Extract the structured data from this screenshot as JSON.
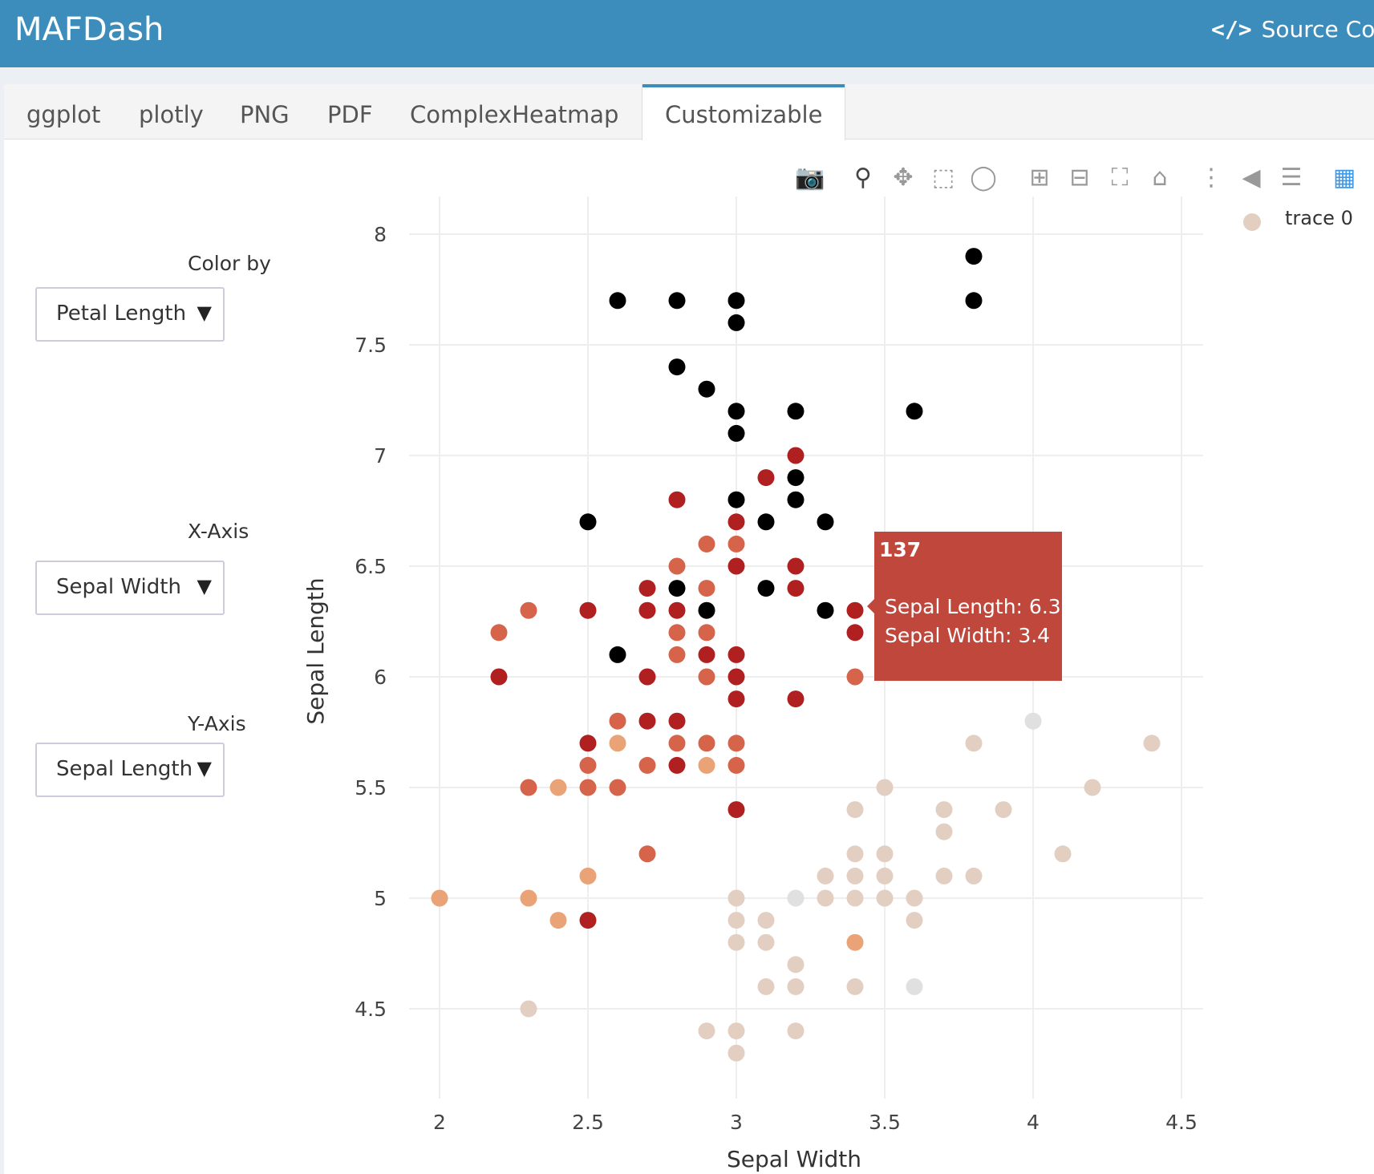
{
  "app": {
    "title": "MAFDash",
    "source_link": "Source Code"
  },
  "tabs": [
    {
      "label": "ggplot"
    },
    {
      "label": "plotly"
    },
    {
      "label": "PNG"
    },
    {
      "label": "PDF"
    },
    {
      "label": "ComplexHeatmap"
    },
    {
      "label": "Customizable"
    }
  ],
  "active_tab": "Customizable",
  "controls": {
    "color_by": {
      "label": "Color by",
      "value": "Petal Length"
    },
    "x_axis": {
      "label": "X-Axis",
      "value": "Sepal Width"
    },
    "y_axis": {
      "label": "Y-Axis",
      "value": "Sepal Length"
    }
  },
  "modebar": [
    "camera-icon",
    "zoom-icon",
    "pan-icon",
    "box-select-icon",
    "lasso-icon",
    "zoom-in-icon",
    "zoom-out-icon",
    "autoscale-icon",
    "reset-axes-icon",
    "spike-lines-icon",
    "hover-closest-icon",
    "hover-compare-icon",
    "plotly-logo-icon"
  ],
  "legend": {
    "label": "trace 0",
    "color": "#e3cfc2"
  },
  "tooltip": {
    "title": "137",
    "line1": "Sepal Length: 6.3",
    "line2": "Sepal Width: 3.4",
    "color": "#c0473b"
  },
  "chart_data": {
    "type": "scatter",
    "xlabel": "Sepal Width",
    "ylabel": "Sepal Length",
    "xlim": [
      1.9,
      4.6
    ],
    "ylim": [
      4.2,
      8.1
    ],
    "xticks": [
      "2",
      "2.5",
      "3",
      "3.5",
      "4",
      "4.5"
    ],
    "yticks": [
      "4.5",
      "5",
      "5.5",
      "6",
      "6.5",
      "7",
      "7.5",
      "8"
    ],
    "color_scale": [
      "#e0e0e0",
      "#e3cfc2",
      "#e9a377",
      "#d5644a",
      "#b02020"
    ],
    "series": [
      {
        "name": "trace 0",
        "points": [
          [
            2.6,
            7.7,
            5
          ],
          [
            2.8,
            7.7,
            5
          ],
          [
            3.0,
            7.7,
            5
          ],
          [
            3.8,
            7.9,
            5
          ],
          [
            3.8,
            7.7,
            5
          ],
          [
            3.0,
            7.6,
            5
          ],
          [
            2.8,
            7.4,
            5
          ],
          [
            2.9,
            7.3,
            5
          ],
          [
            3.0,
            7.2,
            5
          ],
          [
            3.2,
            7.2,
            5
          ],
          [
            3.6,
            7.2,
            5
          ],
          [
            3.0,
            7.1,
            5
          ],
          [
            3.2,
            7.0,
            4
          ],
          [
            3.1,
            6.9,
            4
          ],
          [
            3.2,
            6.9,
            5
          ],
          [
            2.8,
            6.8,
            4
          ],
          [
            3.0,
            6.8,
            5
          ],
          [
            3.2,
            6.8,
            5
          ],
          [
            2.5,
            6.7,
            5
          ],
          [
            3.0,
            6.7,
            4
          ],
          [
            3.1,
            6.7,
            5
          ],
          [
            3.3,
            6.7,
            5
          ],
          [
            2.9,
            6.6,
            3
          ],
          [
            3.0,
            6.6,
            3
          ],
          [
            2.8,
            6.5,
            3
          ],
          [
            3.0,
            6.5,
            4
          ],
          [
            3.2,
            6.5,
            4
          ],
          [
            2.7,
            6.4,
            4
          ],
          [
            2.8,
            6.4,
            5
          ],
          [
            2.9,
            6.4,
            3
          ],
          [
            3.1,
            6.4,
            5
          ],
          [
            3.2,
            6.4,
            4
          ],
          [
            2.3,
            6.3,
            3
          ],
          [
            2.5,
            6.3,
            4
          ],
          [
            2.7,
            6.3,
            4
          ],
          [
            2.8,
            6.3,
            4
          ],
          [
            2.9,
            6.3,
            5
          ],
          [
            3.3,
            6.3,
            5
          ],
          [
            3.4,
            6.3,
            4
          ],
          [
            2.2,
            6.2,
            3
          ],
          [
            2.8,
            6.2,
            3
          ],
          [
            2.9,
            6.2,
            3
          ],
          [
            3.4,
            6.2,
            4
          ],
          [
            2.6,
            6.1,
            5
          ],
          [
            2.8,
            6.1,
            3
          ],
          [
            2.9,
            6.1,
            4
          ],
          [
            3.0,
            6.1,
            4
          ],
          [
            2.2,
            6.0,
            4
          ],
          [
            2.7,
            6.0,
            4
          ],
          [
            2.9,
            6.0,
            3
          ],
          [
            3.0,
            6.0,
            4
          ],
          [
            3.4,
            6.0,
            3
          ],
          [
            3.0,
            5.9,
            4
          ],
          [
            3.2,
            5.9,
            4
          ],
          [
            2.6,
            5.8,
            3
          ],
          [
            2.7,
            5.8,
            4
          ],
          [
            2.8,
            5.8,
            4
          ],
          [
            4.0,
            5.8,
            0
          ],
          [
            2.5,
            5.7,
            4
          ],
          [
            2.6,
            5.7,
            2
          ],
          [
            2.8,
            5.7,
            3
          ],
          [
            2.9,
            5.7,
            3
          ],
          [
            3.0,
            5.7,
            3
          ],
          [
            3.8,
            5.7,
            1
          ],
          [
            4.4,
            5.7,
            1
          ],
          [
            2.5,
            5.6,
            3
          ],
          [
            2.7,
            5.6,
            3
          ],
          [
            2.8,
            5.6,
            4
          ],
          [
            2.9,
            5.6,
            2
          ],
          [
            3.0,
            5.6,
            3
          ],
          [
            2.3,
            5.5,
            3
          ],
          [
            2.4,
            5.5,
            2
          ],
          [
            2.5,
            5.5,
            3
          ],
          [
            2.6,
            5.5,
            3
          ],
          [
            3.5,
            5.5,
            1
          ],
          [
            4.2,
            5.5,
            1
          ],
          [
            3.0,
            5.4,
            4
          ],
          [
            3.4,
            5.4,
            1
          ],
          [
            3.7,
            5.4,
            1
          ],
          [
            3.9,
            5.4,
            1
          ],
          [
            3.7,
            5.3,
            1
          ],
          [
            2.7,
            5.2,
            3
          ],
          [
            3.4,
            5.2,
            1
          ],
          [
            3.5,
            5.2,
            1
          ],
          [
            4.1,
            5.2,
            1
          ],
          [
            2.5,
            5.1,
            2
          ],
          [
            3.3,
            5.1,
            1
          ],
          [
            3.4,
            5.1,
            1
          ],
          [
            3.5,
            5.1,
            1
          ],
          [
            3.7,
            5.1,
            1
          ],
          [
            3.8,
            5.1,
            1
          ],
          [
            2.0,
            5.0,
            2
          ],
          [
            2.3,
            5.0,
            2
          ],
          [
            3.0,
            5.0,
            1
          ],
          [
            3.2,
            5.0,
            0
          ],
          [
            3.3,
            5.0,
            1
          ],
          [
            3.4,
            5.0,
            1
          ],
          [
            3.5,
            5.0,
            1
          ],
          [
            3.6,
            5.0,
            1
          ],
          [
            2.4,
            4.9,
            2
          ],
          [
            2.5,
            4.9,
            4
          ],
          [
            3.0,
            4.9,
            1
          ],
          [
            3.1,
            4.9,
            1
          ],
          [
            3.6,
            4.9,
            1
          ],
          [
            3.0,
            4.8,
            1
          ],
          [
            3.1,
            4.8,
            1
          ],
          [
            3.4,
            4.8,
            2
          ],
          [
            3.2,
            4.7,
            1
          ],
          [
            3.1,
            4.6,
            1
          ],
          [
            3.2,
            4.6,
            1
          ],
          [
            3.4,
            4.6,
            1
          ],
          [
            3.6,
            4.6,
            0
          ],
          [
            2.3,
            4.5,
            1
          ],
          [
            2.9,
            4.4,
            1
          ],
          [
            3.0,
            4.4,
            1
          ],
          [
            3.2,
            4.4,
            1
          ],
          [
            3.0,
            4.3,
            1
          ]
        ]
      }
    ]
  }
}
